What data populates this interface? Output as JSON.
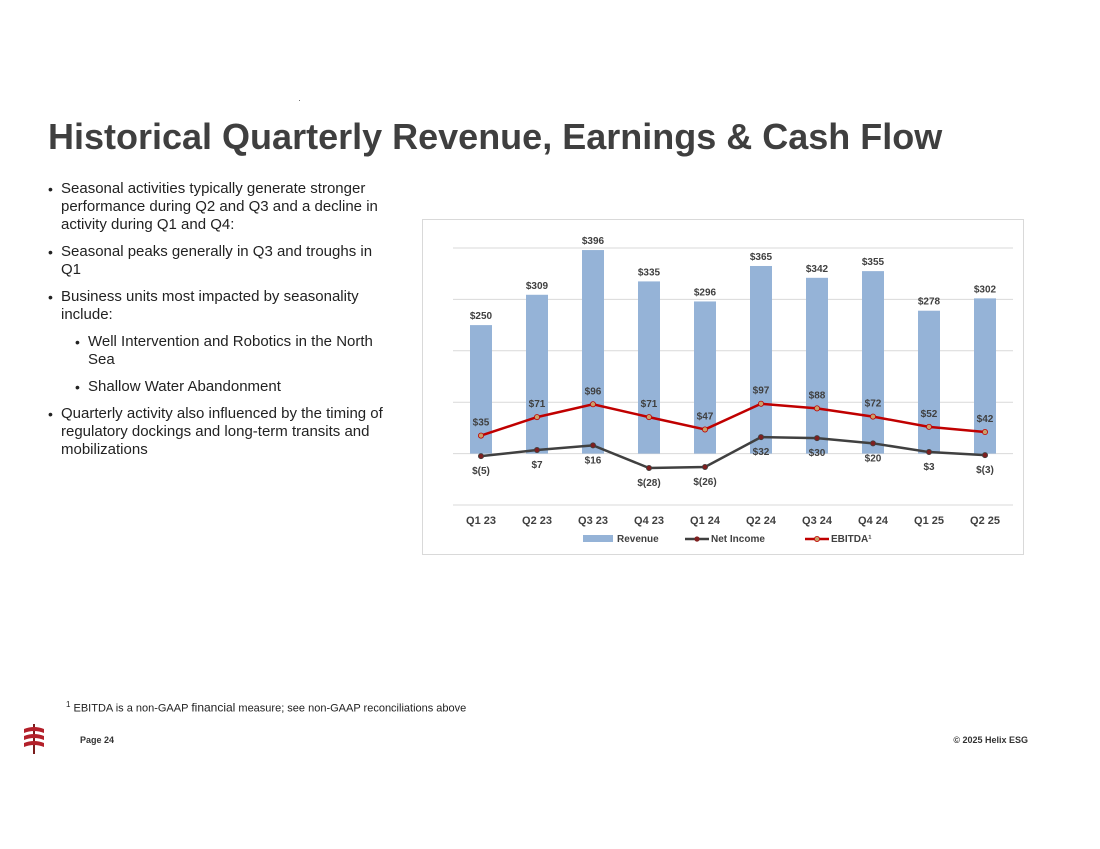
{
  "title": "Historical Quarterly Revenue, Earnings & Cash Flow",
  "bullets": {
    "b1": "Seasonal activities typically generate stronger performance during Q2 and Q3 and a decline in activity during Q1 and Q4:",
    "b2": "Seasonal peaks generally in Q3 and troughs in Q1",
    "b3": "Business units most impacted by seasonality include:",
    "b3_sub1": "Well Intervention and Robotics in the North Sea",
    "b3_sub2": "Shallow Water Abandonment",
    "b4": "Quarterly activity also influenced by the timing of regulatory dockings and long-term transits and mobilizations"
  },
  "chart_data": {
    "type": "bar",
    "categories": [
      "Q1 23",
      "Q2 23",
      "Q3 23",
      "Q4 23",
      "Q1 24",
      "Q2 24",
      "Q3 24",
      "Q4 24",
      "Q1 25",
      "Q2 25"
    ],
    "series": [
      {
        "name": "Revenue",
        "kind": "bar",
        "color": "#95b3d7",
        "values": [
          250,
          309,
          396,
          335,
          296,
          365,
          342,
          355,
          278,
          302
        ],
        "labels": [
          "$250",
          "$309",
          "$396",
          "$335",
          "$296",
          "$365",
          "$342",
          "$355",
          "$278",
          "$302"
        ]
      },
      {
        "name": "Net Income",
        "kind": "line",
        "color": "#404040",
        "marker": "#7f1f1f",
        "values": [
          -5,
          7,
          16,
          -28,
          -26,
          32,
          30,
          20,
          3,
          -3
        ],
        "labels": [
          "$(5)",
          "$7",
          "$16",
          "$(28)",
          "$(26)",
          "$32",
          "$30",
          "$20",
          "$3",
          "$(3)"
        ]
      },
      {
        "name": "EBITDA",
        "legend": "EBITDA¹",
        "kind": "line",
        "color": "#c00000",
        "marker": "#c9a06a",
        "values": [
          35,
          71,
          96,
          71,
          47,
          97,
          88,
          72,
          52,
          42
        ],
        "labels": [
          "$35",
          "$71",
          "$96",
          "$71",
          "$47",
          "$97",
          "$88",
          "$72",
          "$52",
          "$42"
        ]
      }
    ],
    "ylim": [
      -100,
      400
    ],
    "grid": true,
    "legend_position": "bottom"
  },
  "footnote": {
    "sup": "1",
    "part1": " EBITDA is a non-GAAP ",
    "part2": "financial",
    "part3": " measure; see non-GAAP reconciliations above"
  },
  "footer": {
    "page": "Page 24",
    "copyright": "© 2025 Helix ESG"
  },
  "colors": {
    "title": "#3f3f3f",
    "logo": "#b3202a"
  }
}
